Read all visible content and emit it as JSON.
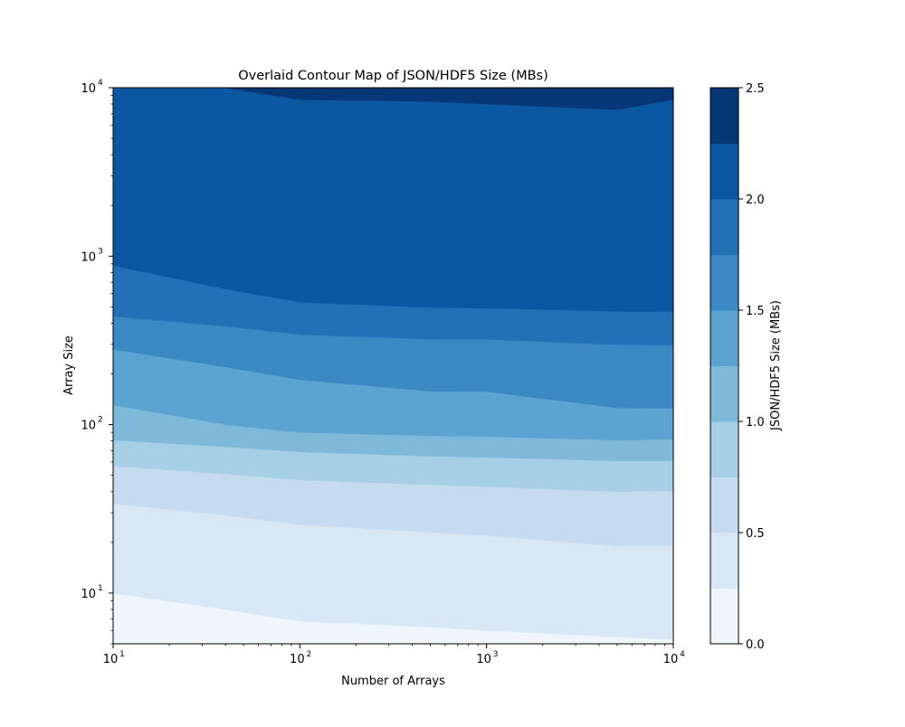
{
  "chart_data": {
    "type": "contour",
    "title": "Overlaid Contour Map of JSON/HDF5 Size (MBs)",
    "xlabel": "Number of Arrays",
    "ylabel": "Array Size",
    "x_scale": "log",
    "y_scale": "log",
    "xlim": [
      10,
      10000
    ],
    "ylim": [
      5,
      10000
    ],
    "x_ticks": [
      {
        "base": "10",
        "exp": "1",
        "value": 10
      },
      {
        "base": "10",
        "exp": "2",
        "value": 100
      },
      {
        "base": "10",
        "exp": "3",
        "value": 1000
      },
      {
        "base": "10",
        "exp": "4",
        "value": 10000
      }
    ],
    "y_ticks": [
      {
        "base": "10",
        "exp": "1",
        "value": 10
      },
      {
        "base": "10",
        "exp": "2",
        "value": 100
      },
      {
        "base": "10",
        "exp": "3",
        "value": 1000
      },
      {
        "base": "10",
        "exp": "4",
        "value": 10000
      }
    ],
    "grid": false,
    "levels": [
      0.0,
      0.25,
      0.5,
      0.75,
      1.0,
      1.25,
      1.5,
      1.75,
      2.0,
      2.25,
      2.5
    ],
    "level_colors": [
      "#f0f6fd",
      "#d9e7f5",
      "#c6dbef",
      "#a6cee4",
      "#7fb9da",
      "#5ba3d0",
      "#3b88c3",
      "#2270b6",
      "#0c57a2",
      "#083778"
    ],
    "x_points": [
      10,
      40,
      100,
      500,
      1000,
      5000,
      10000
    ],
    "contour_lines": [
      {
        "level": 0.25,
        "y": [
          10,
          8,
          6.8,
          6.3,
          6.0,
          5.5,
          5.3
        ]
      },
      {
        "level": 0.5,
        "y": [
          34,
          29,
          25.5,
          23,
          22,
          19,
          19.2
        ]
      },
      {
        "level": 0.75,
        "y": [
          57,
          51,
          47,
          44,
          43,
          40,
          40.5
        ]
      },
      {
        "level": 1.0,
        "y": [
          81,
          74,
          69,
          65,
          64,
          61,
          61
        ]
      },
      {
        "level": 1.25,
        "y": [
          131,
          100,
          90,
          86,
          85,
          81,
          82
        ]
      },
      {
        "level": 1.5,
        "y": [
          280,
          220,
          185,
          158,
          157,
          126,
          125
        ]
      },
      {
        "level": 1.75,
        "y": [
          440,
          385,
          343,
          322,
          321,
          298,
          297
        ]
      },
      {
        "level": 2.0,
        "y": [
          880,
          640,
          533,
          496,
          492,
          471,
          469
        ]
      },
      {
        "level": 2.25,
        "y": [
          10000,
          10000,
          8500,
          8300,
          8000,
          7400,
          8500
        ]
      }
    ],
    "colorbar": {
      "label": "JSON/HDF5 Size (MBs)",
      "range": [
        0,
        2.5
      ],
      "ticks": [
        "0.0",
        "0.5",
        "1.0",
        "1.5",
        "2.0",
        "2.5"
      ],
      "tick_values": [
        0,
        0.5,
        1.0,
        1.5,
        2.0,
        2.5
      ]
    }
  }
}
